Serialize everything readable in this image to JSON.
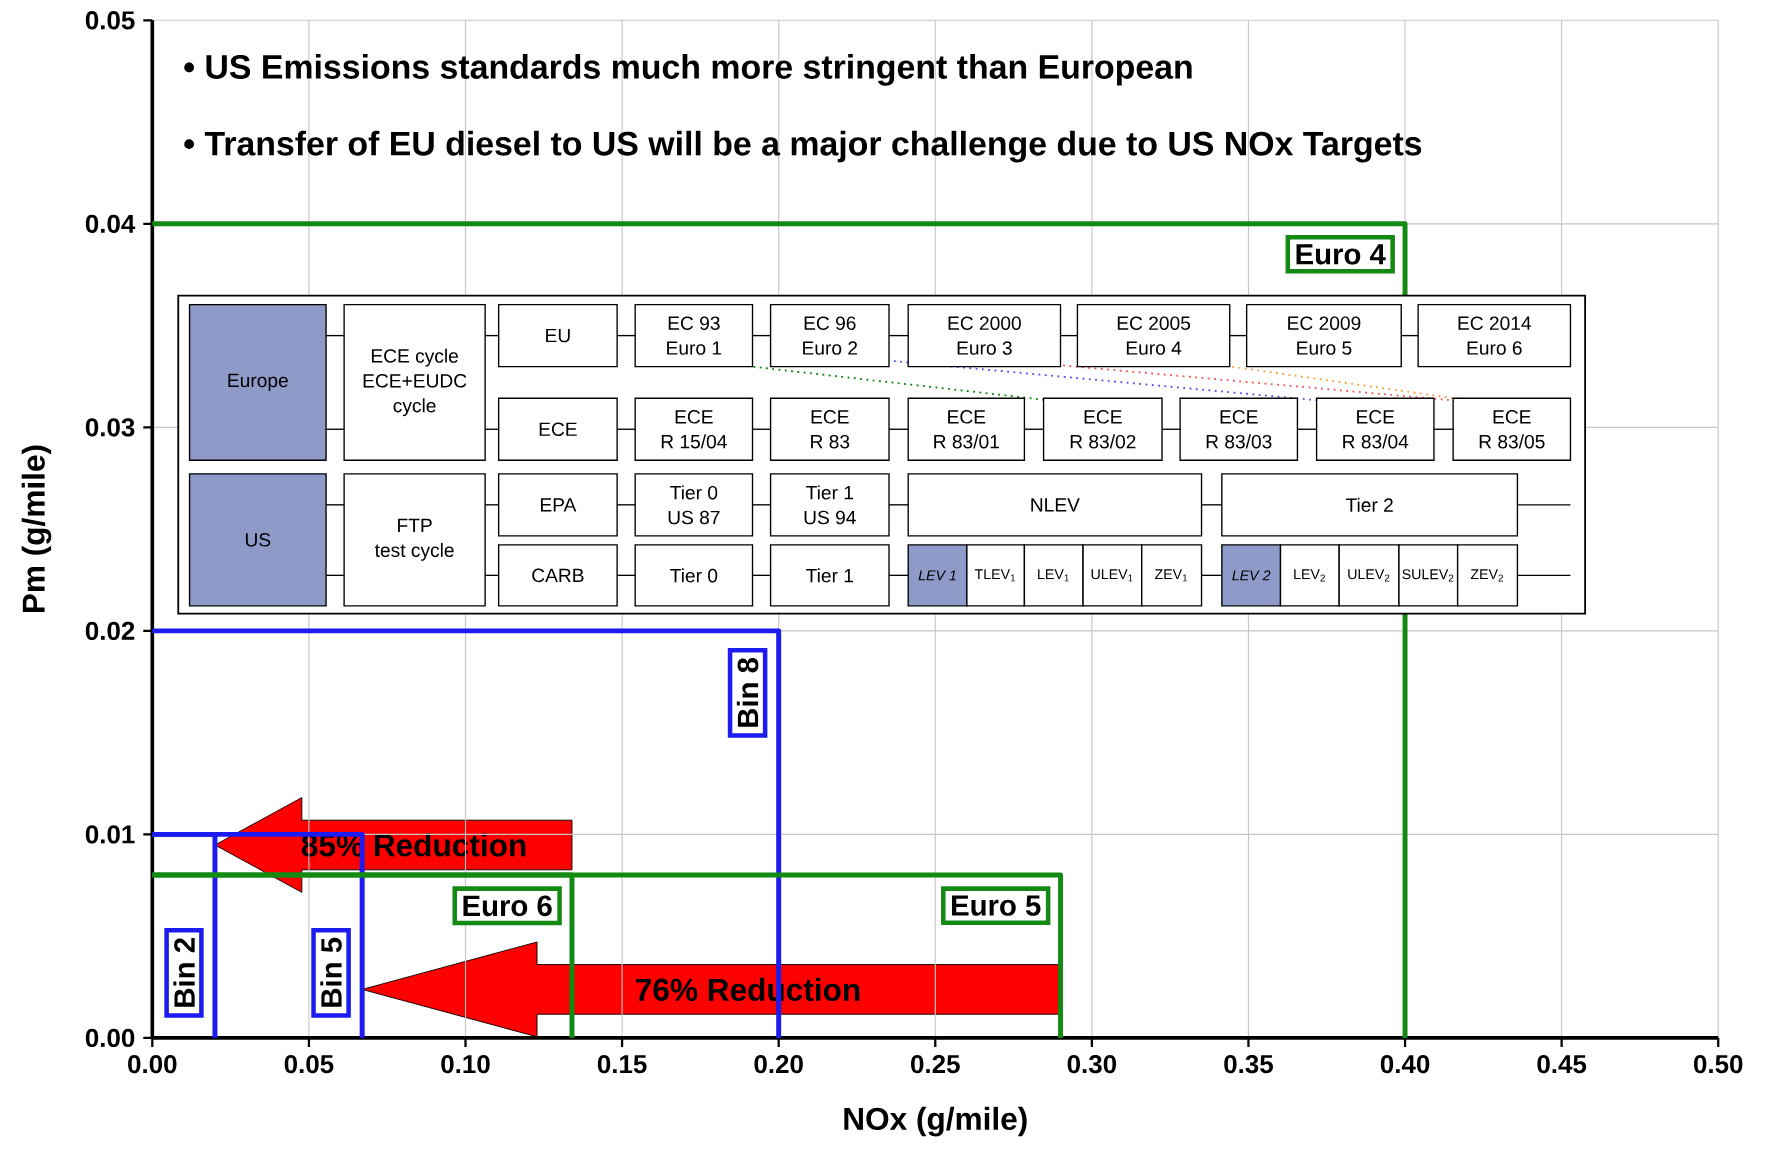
{
  "chart_data": {
    "type": "line",
    "xlabel": "NOx (g/mile)",
    "ylabel": "Pm (g/mile)",
    "marker": "none",
    "grid": true,
    "xlim": [
      0,
      0.5
    ],
    "ylim": [
      0,
      0.05
    ],
    "xticks": [
      {
        "value": 0,
        "label": "0.00"
      },
      {
        "value": 0.05,
        "label": "0.05"
      },
      {
        "value": 0.1,
        "label": "0.10"
      },
      {
        "value": 0.15,
        "label": "0.15"
      },
      {
        "value": 0.2,
        "label": "0.20"
      },
      {
        "value": 0.25,
        "label": "0.25"
      },
      {
        "value": 0.3,
        "label": "0.30"
      },
      {
        "value": 0.35,
        "label": "0.35"
      },
      {
        "value": 0.4,
        "label": "0.40"
      },
      {
        "value": 0.45,
        "label": "0.45"
      },
      {
        "value": 0.5,
        "label": "0.50"
      }
    ],
    "yticks": [
      {
        "value": 0,
        "label": "0.00"
      },
      {
        "value": 0.01,
        "label": "0.01"
      },
      {
        "value": 0.02,
        "label": "0.02"
      },
      {
        "value": 0.03,
        "label": "0.03"
      },
      {
        "value": 0.04,
        "label": "0.04"
      },
      {
        "value": 0.05,
        "label": "0.05"
      }
    ],
    "series": [
      {
        "name": "Euro 4",
        "color": "#138a13",
        "x": [
          0,
          0.4,
          0.4
        ],
        "values": [
          0.04,
          0.04,
          0
        ]
      },
      {
        "name": "Bin 8",
        "color": "#1c1cf0",
        "x": [
          0,
          0.2,
          0.2
        ],
        "values": [
          0.02,
          0.02,
          0
        ]
      },
      {
        "name": "Bin 2",
        "color": "#1c1cf0",
        "x": [
          0,
          0.02,
          0.02
        ],
        "values": [
          0.01,
          0.01,
          0
        ]
      },
      {
        "name": "Bin 5",
        "color": "#1c1cf0",
        "x": [
          0,
          0.067,
          0.067
        ],
        "values": [
          0.01,
          0.01,
          0
        ]
      },
      {
        "name": "Euro 5",
        "color": "#138a13",
        "x": [
          0,
          0.29,
          0.29
        ],
        "values": [
          0.008,
          0.008,
          0
        ]
      },
      {
        "name": "Euro 6",
        "color": "#138a13",
        "x": [
          0,
          0.134,
          0.134
        ],
        "values": [
          0.008,
          0.008,
          0
        ]
      }
    ],
    "annotations": [
      "• US Emissions standards much more stringent than European",
      "• Transfer of EU diesel to US will be a major challenge due to US NOx Targets",
      "85% Reduction",
      "76% Reduction",
      "Europe",
      "ECE cycle",
      "ECE+EUDC",
      "cycle",
      "EU",
      "EC 93",
      "Euro 1",
      "EC 96",
      "Euro 2",
      "EC 2000",
      "Euro 3",
      "EC 2005",
      "Euro 4",
      "EC 2009",
      "Euro 5",
      "EC 2014",
      "Euro 6",
      "ECE",
      "ECE",
      "R 15/04",
      "ECE",
      "R 83",
      "ECE",
      "R 83/01",
      "ECE",
      "R 83/02",
      "ECE",
      "R 83/03",
      "ECE",
      "R 83/04",
      "ECE",
      "R 83/05",
      "US",
      "FTP",
      "test cycle",
      "EPA",
      "Tier 0",
      "US 87",
      "Tier 1",
      "US 94",
      "NLEV",
      "Tier 2",
      "CARB",
      "Tier 0",
      "Tier 1",
      "LEV 1",
      "TLEV$_{1}$",
      "LEV$_{1}$",
      "ULEV$_{1}$",
      "ZEV$_{1}$",
      "LEV 2",
      "LEV$_{2}$",
      "ULEV$_{2}$",
      "SULEV$_{2}$",
      "ZEV$_{2}$"
    ]
  }
}
